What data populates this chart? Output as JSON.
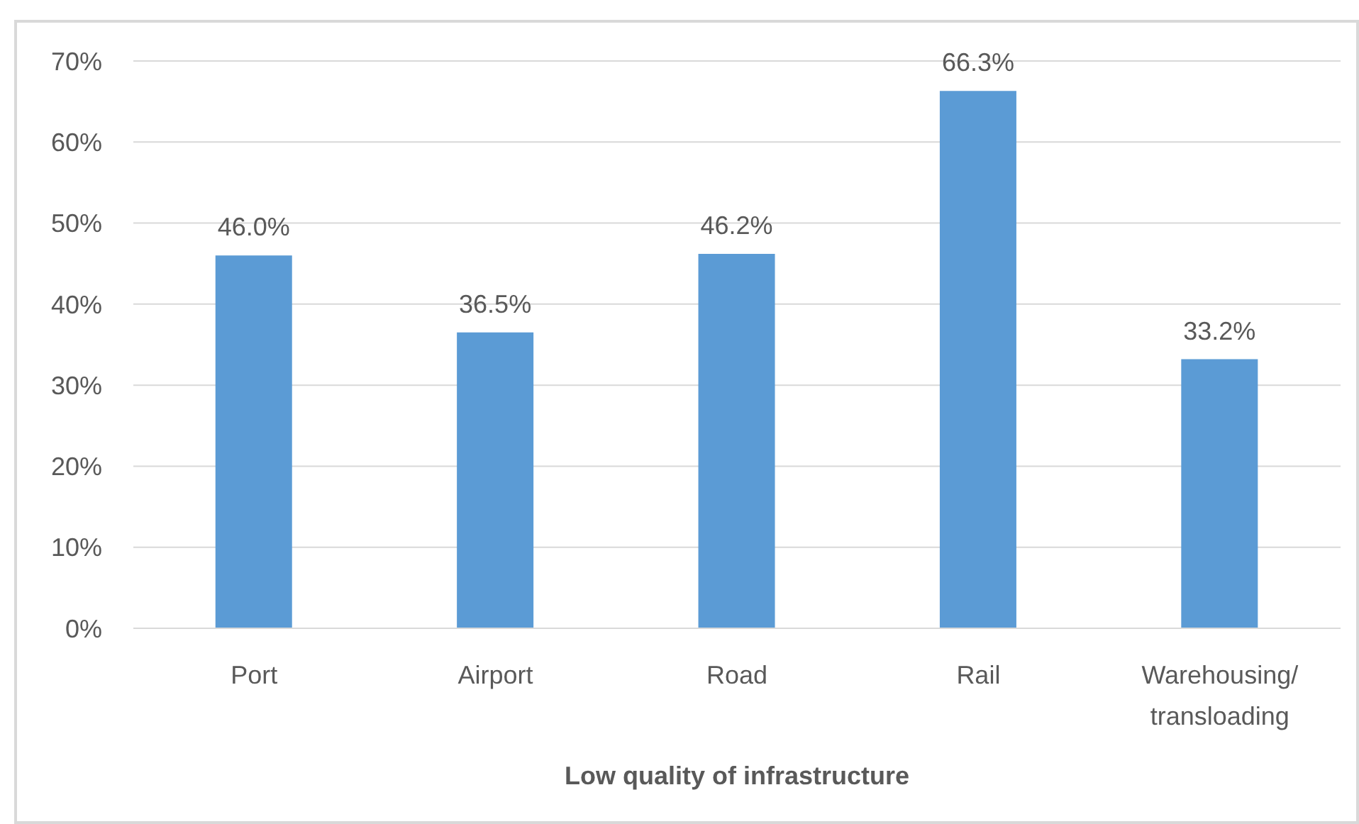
{
  "chart_data": {
    "type": "bar",
    "xlabel": "Low quality of infrastructure",
    "categories": [
      "Port",
      "Airport",
      "Road",
      "Rail",
      "Warehousing/transloading"
    ],
    "values": [
      46.0,
      36.5,
      46.2,
      66.3,
      33.2
    ],
    "color": "#5b9bd5",
    "value_labels": [
      "46.0%",
      "36.5%",
      "46.2%",
      "66.3%",
      "33.2%"
    ],
    "ylim": [
      0,
      70
    ],
    "yticks": [
      {
        "value": 0,
        "label": "0%"
      },
      {
        "value": 10,
        "label": "10%"
      },
      {
        "value": 20,
        "label": "20%"
      },
      {
        "value": 30,
        "label": "30%"
      },
      {
        "value": 40,
        "label": "40%"
      },
      {
        "value": 50,
        "label": "50%"
      },
      {
        "value": 60,
        "label": "60%"
      },
      {
        "value": 70,
        "label": "70%"
      }
    ],
    "grid": "y"
  }
}
